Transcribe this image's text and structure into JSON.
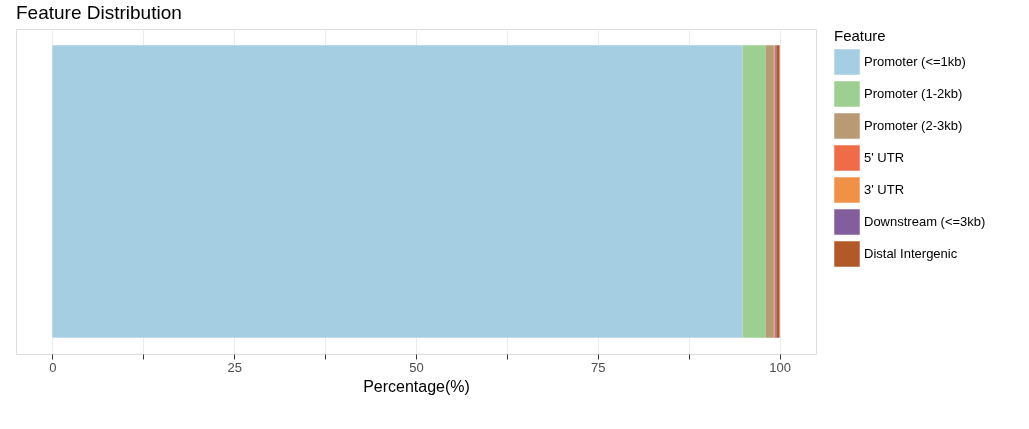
{
  "chart_data": {
    "type": "bar",
    "title": "Feature Distribution",
    "xlabel": "Percentage(%)",
    "legend_title": "Feature",
    "orientation": "horizontal",
    "stacked": true,
    "categories": [
      null
    ],
    "series": [
      {
        "name": "Promoter (<=1kb)",
        "color": "#a6cee3",
        "values": [
          94.9
        ]
      },
      {
        "name": "Promoter (1-2kb)",
        "color": "#9ecf92",
        "values": [
          3.2
        ]
      },
      {
        "name": "Promoter (2-3kb)",
        "color": "#b89b74",
        "values": [
          1.1
        ]
      },
      {
        "name": "5' UTR",
        "color": "#f06b47",
        "values": [
          0.1
        ]
      },
      {
        "name": "3' UTR",
        "color": "#f09148",
        "values": [
          0.1
        ]
      },
      {
        "name": "Downstream (<=3kb)",
        "color": "#835e9c",
        "values": [
          0.2
        ]
      },
      {
        "name": "Distal Intergenic",
        "color": "#b15928",
        "values": [
          0.4
        ]
      }
    ],
    "xlim": [
      -5,
      105
    ],
    "xticks": [
      0,
      {
        "value": 12.5,
        "label": null
      },
      25,
      {
        "value": 37.5,
        "label": null
      },
      50,
      {
        "value": 62.5,
        "label": null
      },
      75,
      {
        "value": 87.5,
        "label": null
      },
      100
    ],
    "grid": "x",
    "legend": "right",
    "tick_labels": "x"
  }
}
